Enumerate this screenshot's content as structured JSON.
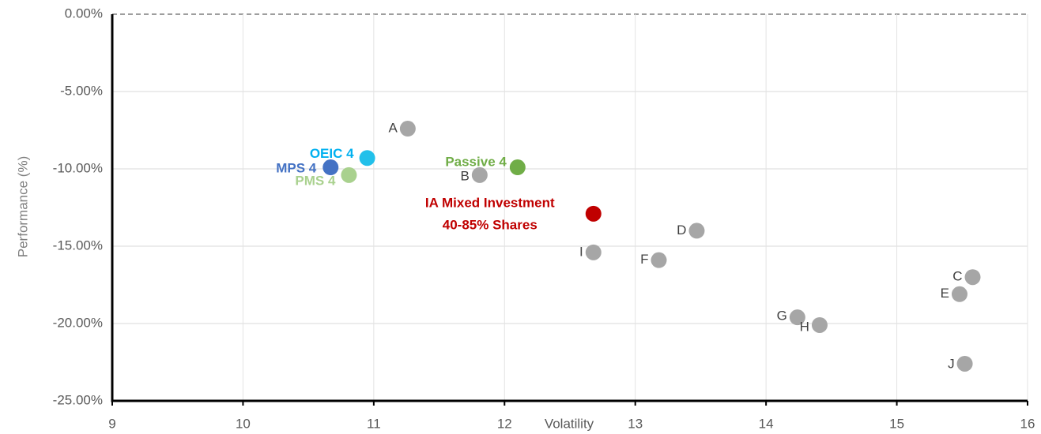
{
  "chart_data": {
    "type": "scatter",
    "x_label": "Volatility",
    "y_label": "Performance (%)",
    "xlim": [
      9,
      16
    ],
    "xticks": [
      9,
      10,
      11,
      12,
      13,
      14,
      15,
      16
    ],
    "ylim": [
      -25,
      0
    ],
    "yticks": [
      {
        "value": 0,
        "label": "0.00%"
      },
      {
        "value": -5,
        "label": "-5.00%"
      },
      {
        "value": -10,
        "label": "-10.00%"
      },
      {
        "value": -15,
        "label": "-15.00%"
      },
      {
        "value": -20,
        "label": "-20.00%"
      },
      {
        "value": -25,
        "label": "-25.00%"
      }
    ],
    "grid": true,
    "points": [
      {
        "label_lines": [
          "A"
        ],
        "x": 11.26,
        "y": -7.4,
        "color": "#a6a6a6",
        "label_color": "#404040"
      },
      {
        "label_lines": [
          "B"
        ],
        "x": 11.81,
        "y": -10.4,
        "color": "#a6a6a6",
        "label_color": "#404040"
      },
      {
        "label_lines": [
          "C"
        ],
        "x": 15.58,
        "y": -17.0,
        "color": "#a6a6a6",
        "label_color": "#404040"
      },
      {
        "label_lines": [
          "D"
        ],
        "x": 13.47,
        "y": -14.0,
        "color": "#a6a6a6",
        "label_color": "#404040"
      },
      {
        "label_lines": [
          "E"
        ],
        "x": 15.48,
        "y": -18.1,
        "color": "#a6a6a6",
        "label_color": "#404040"
      },
      {
        "label_lines": [
          "F"
        ],
        "x": 13.18,
        "y": -15.9,
        "color": "#a6a6a6",
        "label_color": "#404040"
      },
      {
        "label_lines": [
          "G"
        ],
        "x": 14.24,
        "y": -19.6,
        "color": "#a6a6a6",
        "label_color": "#404040"
      },
      {
        "label_lines": [
          "H"
        ],
        "x": 14.41,
        "y": -20.1,
        "color": "#a6a6a6",
        "label_color": "#404040"
      },
      {
        "label_lines": [
          "I"
        ],
        "x": 12.68,
        "y": -15.4,
        "color": "#a6a6a6",
        "label_color": "#404040"
      },
      {
        "label_lines": [
          "J"
        ],
        "x": 15.52,
        "y": -22.6,
        "color": "#a6a6a6",
        "label_color": "#404040"
      },
      {
        "label_lines": [
          "Passive 4"
        ],
        "x": 12.1,
        "y": -9.9,
        "color": "#70ad47",
        "label_color": "#70ad47"
      },
      {
        "label_lines": [
          "OEIC 4"
        ],
        "x": 10.95,
        "y": -9.3,
        "color": "#22c0ea",
        "label_color": "#00b0f0"
      },
      {
        "label_lines": [
          "MPS 4"
        ],
        "x": 10.67,
        "y": -9.9,
        "color": "#4472c4",
        "label_color": "#4472c4"
      },
      {
        "label_lines": [
          "PMS 4"
        ],
        "x": 10.81,
        "y": -10.4,
        "color": "#a9d18e",
        "label_color": "#a9d18e"
      },
      {
        "label_lines": [
          "IA Mixed Investment",
          "40-85% Shares"
        ],
        "x": 12.68,
        "y": -12.9,
        "color": "#c00000",
        "label_color": "#c00000"
      }
    ]
  }
}
